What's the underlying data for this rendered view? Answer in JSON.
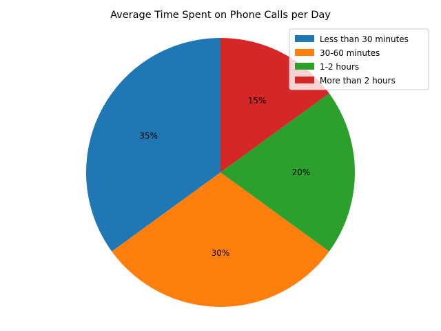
{
  "chart_data": {
    "type": "pie",
    "title": "Average Time Spent on Phone Calls per Day",
    "categories": [
      "Less than 30 minutes",
      "30-60 minutes",
      "1-2 hours",
      "More than 2 hours"
    ],
    "values": [
      35,
      30,
      20,
      15
    ],
    "value_labels": [
      "35%",
      "30%",
      "20%",
      "15%"
    ],
    "colors": [
      "#1f77b4",
      "#ff7f0e",
      "#2ca02c",
      "#d62728"
    ],
    "start_angle_deg": 90,
    "direction": "counterclockwise",
    "legend": {
      "position": "top-right",
      "entries": [
        "Less than 30 minutes",
        "30-60 minutes",
        "1-2 hours",
        "More than 2 hours"
      ]
    }
  }
}
